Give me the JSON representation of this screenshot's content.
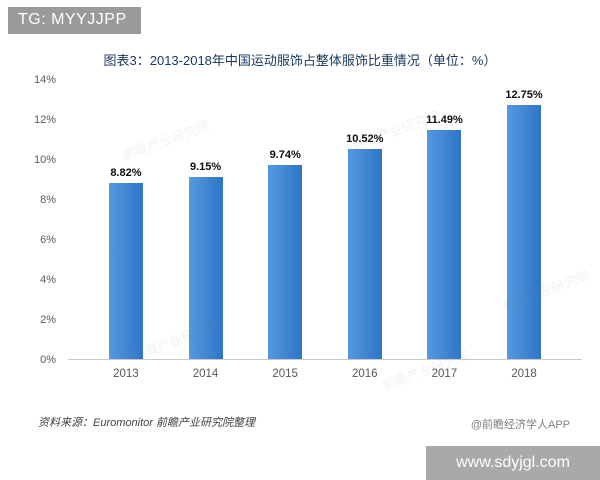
{
  "overlays": {
    "tg_label": "TG: MYYJJPP",
    "website": "www.sdyjgl.com"
  },
  "chart_data": {
    "type": "bar",
    "title": "图表3：2013-2018年中国运动服饰占整体服饰比重情况（单位：%）",
    "categories": [
      "2013",
      "2014",
      "2015",
      "2016",
      "2017",
      "2018"
    ],
    "values": [
      8.82,
      9.15,
      9.74,
      10.52,
      11.49,
      12.75
    ],
    "value_labels": [
      "8.82%",
      "9.15%",
      "9.74%",
      "10.52%",
      "11.49%",
      "12.75%"
    ],
    "ylim": [
      0,
      14
    ],
    "yticks": [
      "0%",
      "2%",
      "4%",
      "6%",
      "8%",
      "10%",
      "12%",
      "14%"
    ],
    "bar_color": "#2e74c9",
    "bar_color_light": "#549ade",
    "grid": false,
    "legend": "none",
    "xlabel": "",
    "ylabel": ""
  },
  "footer": {
    "source": "资料来源：Euromonitor  前瞻产业研究院整理",
    "credit": "@前瞻经济学人APP"
  },
  "watermark": {
    "text": "前瞻产业研究院"
  }
}
